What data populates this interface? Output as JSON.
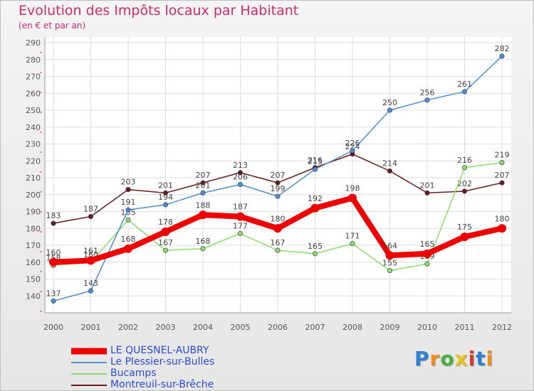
{
  "chart_data": {
    "type": "line",
    "title": "Evolution des Impôts locaux par Habitant",
    "subtitle": "(en € et par an)",
    "xlabel": "",
    "ylabel": "",
    "x": [
      "2000",
      "2001",
      "2002",
      "2003",
      "2004",
      "2005",
      "2006",
      "2007",
      "2008",
      "2009",
      "2010",
      "2011",
      "2012"
    ],
    "ylim": [
      130,
      290
    ],
    "yticks": [
      140,
      150,
      160,
      170,
      180,
      190,
      200,
      210,
      220,
      230,
      240,
      250,
      260,
      270,
      280,
      290
    ],
    "grid": true,
    "legend_position": "bottom-left",
    "series": [
      {
        "name": "Montreuil-sur-Brêche",
        "color": "#6b1b1b",
        "values": [
          183,
          187,
          203,
          201,
          207,
          213,
          207,
          216,
          224,
          214,
          201,
          202,
          207
        ]
      },
      {
        "name": "Bucamps",
        "color": "#8fdc6a",
        "values": [
          158,
          160,
          185,
          167,
          168,
          177,
          167,
          165,
          171,
          155,
          159,
          216,
          219
        ]
      },
      {
        "name": "Le Plessier-sur-Bulles",
        "color": "#4f8fd0",
        "values": [
          137,
          143,
          191,
          194,
          201,
          206,
          199,
          215,
          226,
          250,
          256,
          261,
          282
        ]
      },
      {
        "name": "LE QUESNEL-AUBRY",
        "color": "#ee0000",
        "values": [
          160,
          161,
          168,
          178,
          188,
          187,
          180,
          192,
          198,
          164,
          165,
          175,
          180
        ]
      }
    ],
    "legend": [
      "LE QUESNEL-AUBRY",
      "Le Plessier-sur-Bulles",
      "Bucamps",
      "Montreuil-sur-Brêche"
    ]
  },
  "logo": {
    "letters": [
      "P",
      "r",
      "o",
      "x",
      "i",
      "t",
      "i"
    ],
    "colors": [
      "#2f7fd3",
      "#f08a1a",
      "#4cae3f",
      "#e8c51a",
      "#d53b2e",
      "#2f7fd3",
      "#f08a1a"
    ]
  }
}
